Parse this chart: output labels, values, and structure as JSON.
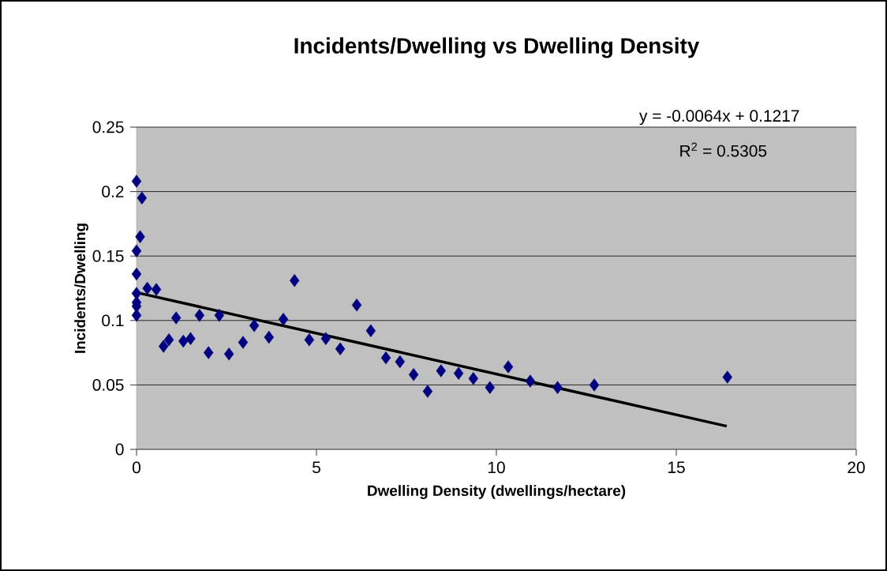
{
  "chart_data": {
    "type": "scatter",
    "title": "Incidents/Dwelling vs Dwelling Density",
    "xlabel": "Dwelling Density (dwellings/hectare)",
    "ylabel": "Incidents/Dwelling",
    "xlim": [
      0,
      20
    ],
    "xticks": [
      0,
      5,
      10,
      15,
      20
    ],
    "ylim": [
      0,
      0.25
    ],
    "yticks": [
      0,
      0.05,
      0.1,
      0.15,
      0.2,
      0.25
    ],
    "grid": "y",
    "marker": "diamond",
    "annotations": [
      "y = -0.0064x + 0.1217",
      "R$^{2}$ = 0.5305"
    ],
    "series": [
      {
        "color": "#000080",
        "x": [
          0.0,
          0.15,
          0.1,
          0.0,
          0.0,
          0.0,
          0.0,
          0.0,
          0.0,
          0.3,
          0.55,
          0.75,
          0.9,
          1.1,
          1.3,
          1.5,
          1.75,
          2.0,
          2.3,
          2.57,
          2.96,
          3.27,
          3.68,
          4.08,
          4.39,
          4.8,
          5.26,
          5.66,
          6.12,
          6.51,
          6.93,
          7.32,
          7.7,
          8.09,
          8.46,
          8.95,
          9.36,
          9.82,
          10.33,
          10.94,
          11.7,
          12.72,
          16.42
        ],
        "values": [
          0.208,
          0.195,
          0.165,
          0.154,
          0.136,
          0.121,
          0.114,
          0.111,
          0.104,
          0.125,
          0.124,
          0.08,
          0.085,
          0.102,
          0.084,
          0.086,
          0.104,
          0.075,
          0.104,
          0.074,
          0.083,
          0.096,
          0.087,
          0.101,
          0.131,
          0.085,
          0.086,
          0.078,
          0.112,
          0.092,
          0.071,
          0.068,
          0.058,
          0.045,
          0.061,
          0.059,
          0.055,
          0.048,
          0.064,
          0.053,
          0.048,
          0.05,
          0.056
        ]
      },
      {
        "type": "line",
        "marker": "none",
        "color": "#000000",
        "x": [
          0,
          16.4
        ],
        "values": [
          0.1217,
          0.018
        ]
      }
    ]
  }
}
